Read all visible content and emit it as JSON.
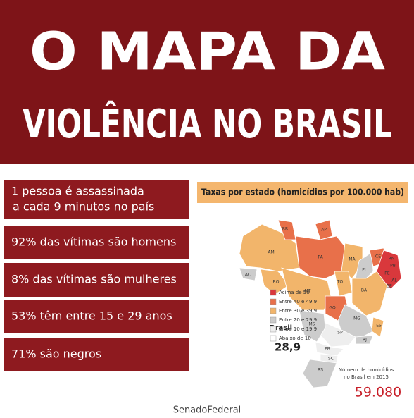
{
  "header": {
    "title_line1": "O MAPA DA",
    "title_line2": "VIOLÊNCIA NO BRASIL"
  },
  "facts": [
    [
      "1 pessoa é assassinada",
      "a cada 9 minutos no país"
    ],
    [
      "92% das vítimas são homens"
    ],
    [
      "8% das vítimas são mulheres"
    ],
    [
      "53% têm entre 15 e 29 anos"
    ],
    [
      "71% são negros"
    ]
  ],
  "map": {
    "title": "Taxas por estado (homicídios por 100.000 hab)",
    "legend": [
      {
        "label": "Acima de 50",
        "color": "#d9383c"
      },
      {
        "label": "Entre 40 e 49,9",
        "color": "#e8704a"
      },
      {
        "label": "Entre 30 e 39,9",
        "color": "#f2b56b"
      },
      {
        "label": "Entre 20 e 29,9",
        "color": "#cccccc"
      },
      {
        "label": "Entre 10 e 19,9",
        "color": "#eeeeee"
      },
      {
        "label": "Abaixo de 10",
        "color": "#ffffff"
      }
    ],
    "states": [
      "RR",
      "AP",
      "AM",
      "PA",
      "MA",
      "CE",
      "RN",
      "PB",
      "PE",
      "AL",
      "SE",
      "PI",
      "BA",
      "TO",
      "AC",
      "RO",
      "MT",
      "GO",
      "MG",
      "ES",
      "RJ",
      "SP",
      "MS",
      "PR",
      "SC",
      "RS"
    ],
    "country_label": "Brasil",
    "country_rate": "28,9",
    "total_caption": [
      "Número de homicídios",
      "no Brasil em 2015"
    ],
    "total": "59.080"
  },
  "footer": "SenadoFederal"
}
